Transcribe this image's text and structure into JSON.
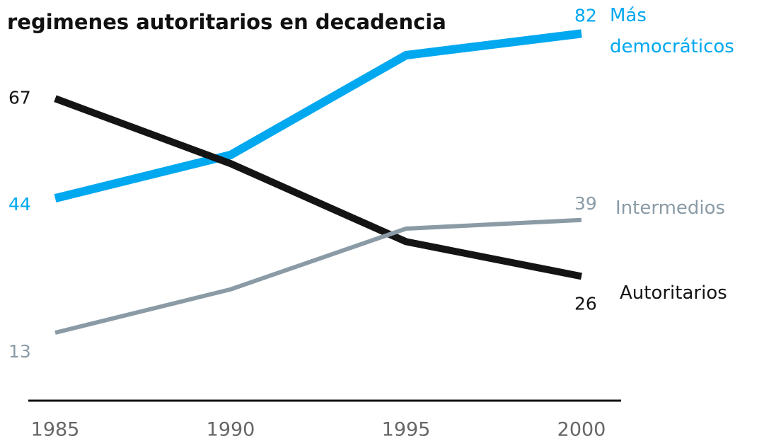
{
  "chart_data": {
    "type": "line",
    "title": "regimenes autoritarios en decadencia",
    "x": [
      1985,
      1990,
      1995,
      2000
    ],
    "xlim": [
      1985,
      2000
    ],
    "xticks": [
      1985,
      1990,
      1995,
      2000
    ],
    "ylim": [
      5,
      85
    ],
    "series": [
      {
        "name": "Más democráticos",
        "color": "#00a8f0",
        "values": [
          44,
          54,
          77,
          82
        ]
      },
      {
        "name": "Autoritarios",
        "color": "#141414",
        "values": [
          67,
          52,
          34,
          26
        ]
      },
      {
        "name": "Intermedios",
        "color": "#8a9ba6",
        "values": [
          13,
          23,
          37,
          39
        ]
      }
    ]
  }
}
